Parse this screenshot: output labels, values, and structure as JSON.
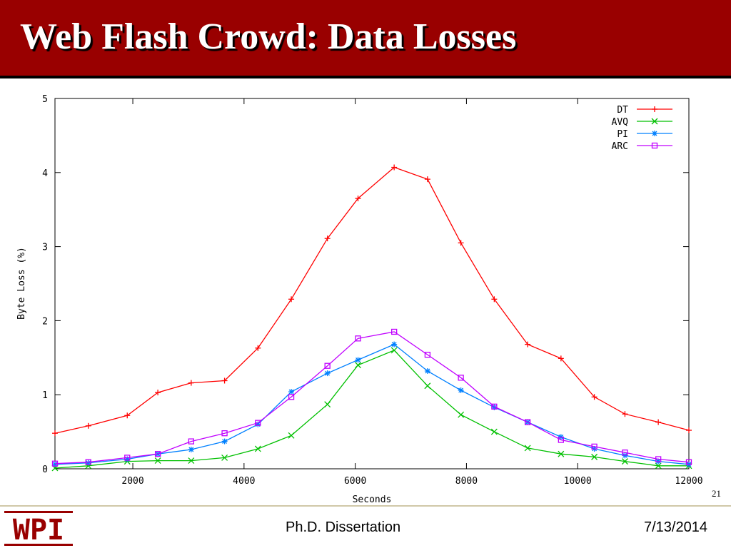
{
  "slide": {
    "title": "Web Flash Crowd: Data Losses",
    "page_number": "21",
    "footer_center": "Ph.D. Dissertation",
    "footer_date": "7/13/2014",
    "logo_text": "WPI"
  },
  "chart_data": {
    "type": "line",
    "title": "",
    "xlabel": "Seconds",
    "ylabel": "Byte Loss (%)",
    "xlim": [
      600,
      12000
    ],
    "ylim": [
      0,
      5
    ],
    "xticks": [
      2000,
      4000,
      6000,
      8000,
      10000,
      12000
    ],
    "yticks": [
      0,
      1,
      2,
      3,
      4,
      5
    ],
    "grid": false,
    "legend_position": "top-right",
    "x": [
      600,
      1200,
      1900,
      2450,
      3050,
      3650,
      4250,
      4850,
      5500,
      6050,
      6700,
      7300,
      7900,
      8500,
      9100,
      9700,
      10300,
      10850,
      11450,
      12000
    ],
    "series": [
      {
        "name": "DT",
        "color": "#ff0000",
        "marker": "+",
        "values": [
          0.48,
          0.58,
          0.72,
          1.03,
          1.16,
          1.19,
          1.63,
          2.29,
          3.11,
          3.65,
          4.07,
          3.91,
          3.05,
          2.29,
          1.68,
          1.49,
          0.97,
          0.74,
          0.63,
          0.52
        ]
      },
      {
        "name": "AVQ",
        "color": "#00c000",
        "marker": "x",
        "values": [
          0.01,
          0.04,
          0.1,
          0.11,
          0.11,
          0.15,
          0.27,
          0.45,
          0.87,
          1.4,
          1.6,
          1.12,
          0.73,
          0.5,
          0.28,
          0.2,
          0.16,
          0.1,
          0.04,
          0.04
        ]
      },
      {
        "name": "PI",
        "color": "#0080ff",
        "marker": "*",
        "values": [
          0.06,
          0.08,
          0.13,
          0.2,
          0.26,
          0.37,
          0.6,
          1.04,
          1.29,
          1.47,
          1.68,
          1.32,
          1.06,
          0.83,
          0.63,
          0.43,
          0.27,
          0.18,
          0.1,
          0.06
        ]
      },
      {
        "name": "ARC",
        "color": "#c000ff",
        "marker": "square",
        "values": [
          0.07,
          0.09,
          0.15,
          0.2,
          0.37,
          0.48,
          0.62,
          0.97,
          1.39,
          1.76,
          1.85,
          1.54,
          1.23,
          0.84,
          0.63,
          0.39,
          0.3,
          0.22,
          0.13,
          0.09
        ]
      }
    ]
  }
}
